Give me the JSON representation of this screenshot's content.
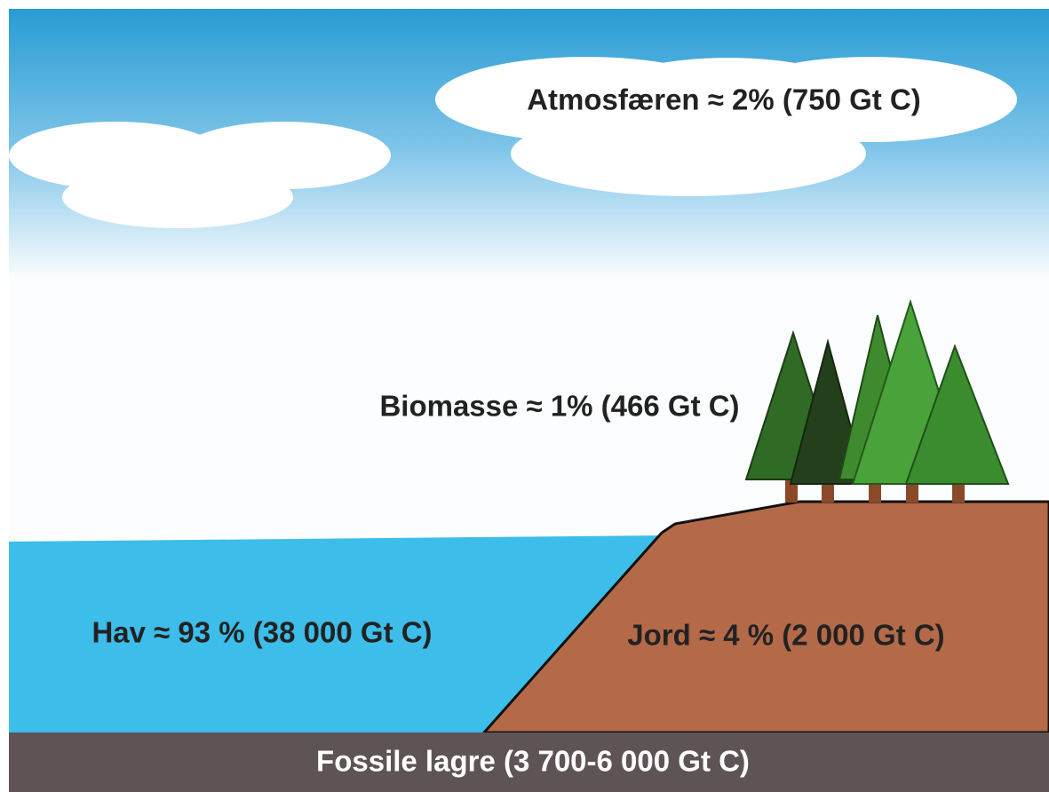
{
  "labels": {
    "atmosphere": "Atmosfæren ≈ 2% (750 Gt C)",
    "biomass": "Biomasse ≈ 1% (466 Gt C)",
    "ocean": "Hav ≈ 93 % (38 000 Gt C)",
    "soil": "Jord ≈ 4 % (2 000 Gt C)",
    "fossil": "Fossile lagre (3 700-6 000 Gt C)"
  }
}
